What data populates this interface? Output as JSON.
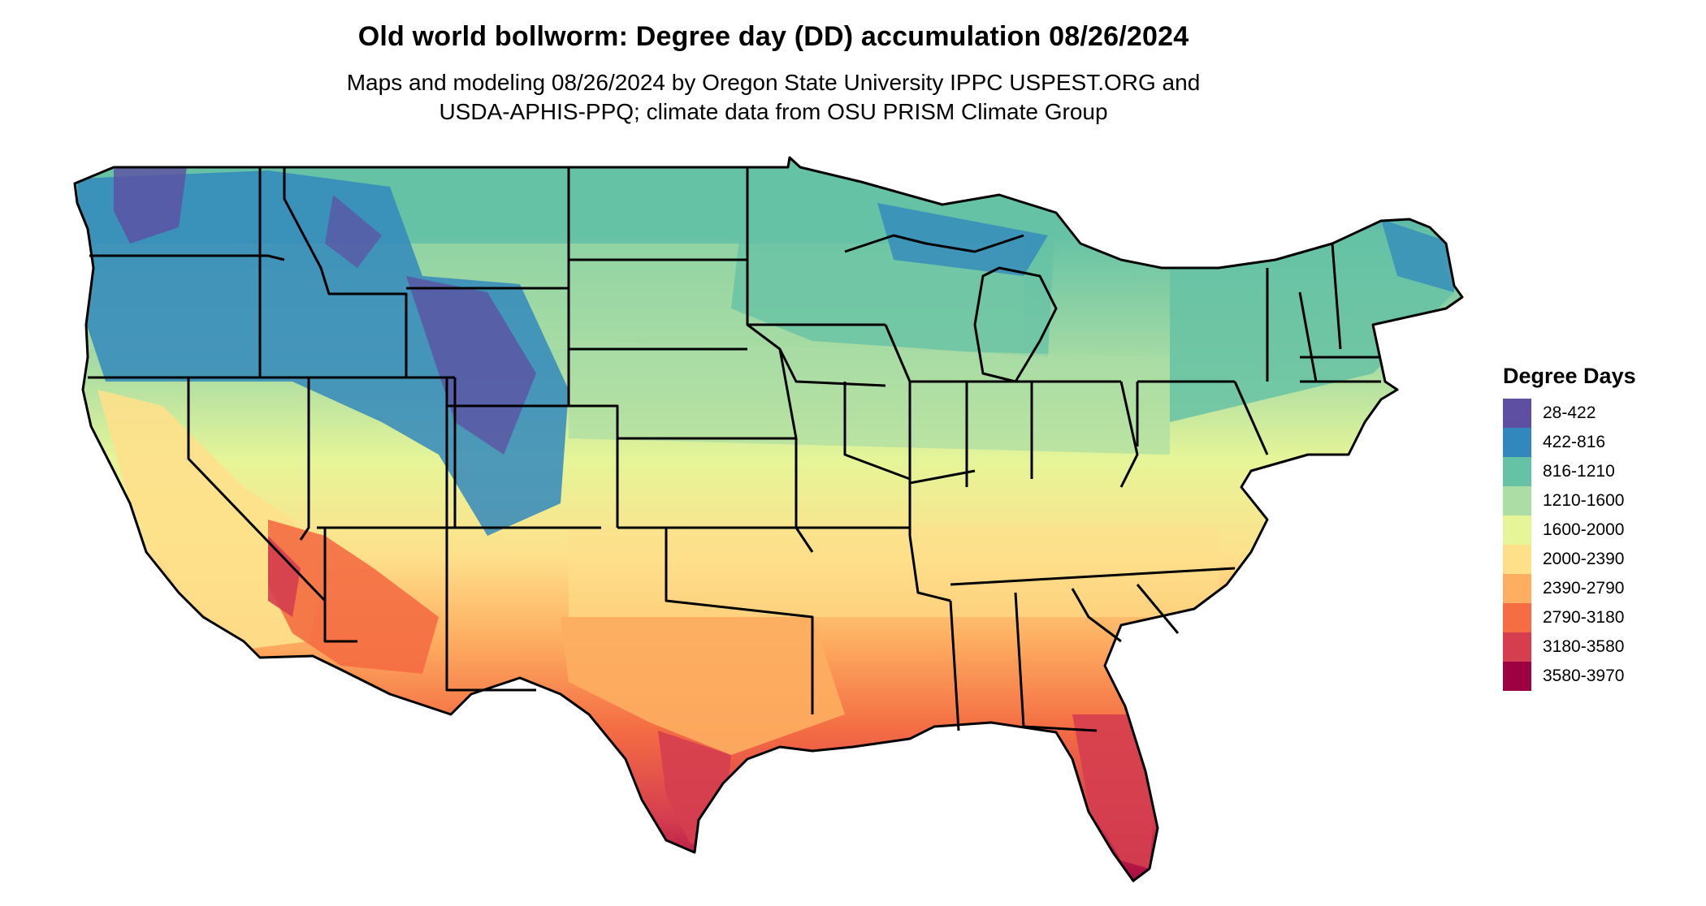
{
  "header": {
    "title": "Old world bollworm: Degree day (DD) accumulation 08/26/2024",
    "subtitle_line1": "Maps and modeling 08/26/2024 by Oregon State University IPPC USPEST.ORG and",
    "subtitle_line2": "USDA-APHIS-PPQ; climate data from OSU PRISM Climate Group"
  },
  "legend": {
    "title": "Degree Days",
    "items": [
      {
        "label": "28-422",
        "color": "#5e4fa2"
      },
      {
        "label": "422-816",
        "color": "#3288bd"
      },
      {
        "label": "816-1210",
        "color": "#66c2a5"
      },
      {
        "label": "1210-1600",
        "color": "#abdda4"
      },
      {
        "label": "1600-2000",
        "color": "#e6f598"
      },
      {
        "label": "2000-2390",
        "color": "#fee08b"
      },
      {
        "label": "2390-2790",
        "color": "#fdae61"
      },
      {
        "label": "2790-3180",
        "color": "#f46d43"
      },
      {
        "label": "3180-3580",
        "color": "#d53e4f"
      },
      {
        "label": "3580-3970",
        "color": "#9e0142"
      }
    ]
  },
  "map": {
    "region": "Contiguous United States",
    "pattern": "degree-day accumulation increasing from north to south; highest in southern Florida, south Texas and the low deserts of Arizona/California; lowest in the northern Rockies and Cascades",
    "boundaries": "state borders"
  }
}
